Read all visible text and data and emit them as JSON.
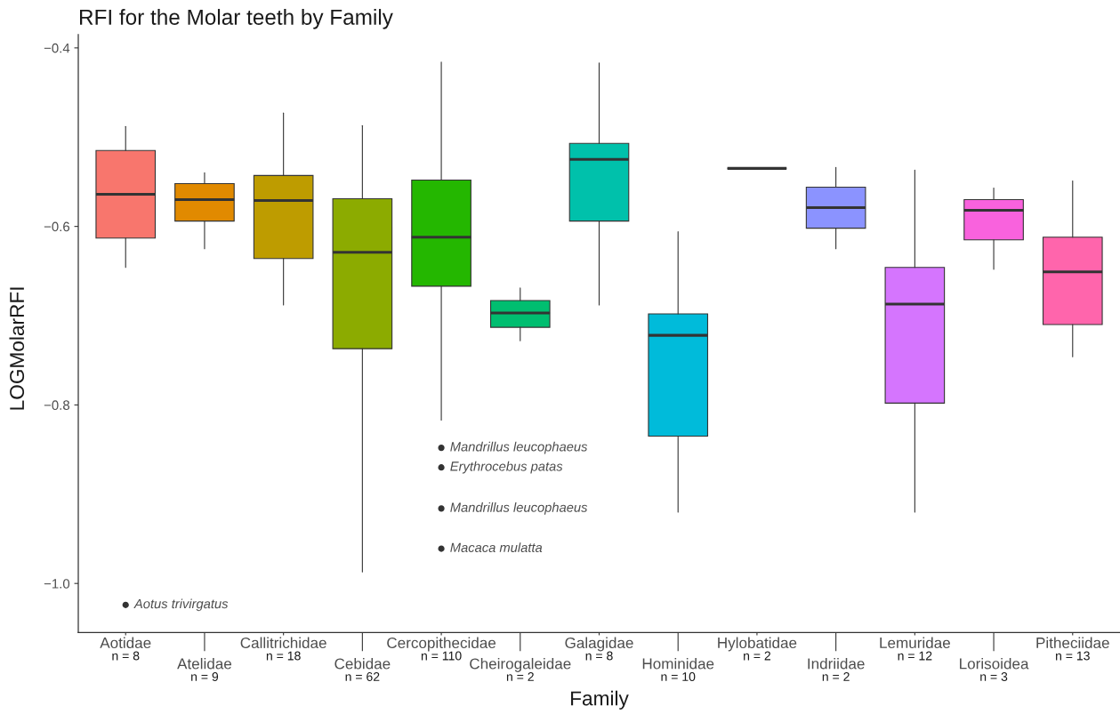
{
  "chart_data": {
    "type": "box",
    "title": "RFI for the Molar teeth by Family",
    "xlabel": "Family",
    "ylabel": "LOGMolarRFI",
    "categories": [
      "Aotidae\nn = 8",
      "Atelidae\nn = 9",
      "Callitrichidae\nn = 18",
      "Cebidae\nn = 62",
      "Cercopithecidae\nn = 110",
      "Cheirogaleidae\nn = 2",
      "Galagidae\nn = 8",
      "Hominidae\nn = 10",
      "Hylobatidae\nn = 2",
      "Indriidae\nn = 2",
      "Lemuridae\nn = 12",
      "Lorisoidea\nn = 3",
      "Pitheciidae\nn = 13"
    ],
    "colors": [
      "#f8766d",
      "#e18a00",
      "#be9c00",
      "#8cab00",
      "#24b700",
      "#00be70",
      "#00c1ab",
      "#00bbda",
      null,
      "#8b93ff",
      "#d575fe",
      "#f962dd",
      "#ff65ac"
    ],
    "boxes": [
      {
        "low": -0.646,
        "q1": -0.613,
        "median": -0.564,
        "q3": -0.515,
        "high": -0.488,
        "outliers": [
          -1.024
        ]
      },
      {
        "low": -0.625,
        "q1": -0.594,
        "median": -0.57,
        "q3": -0.552,
        "high": -0.54
      },
      {
        "low": -0.688,
        "q1": -0.636,
        "median": -0.571,
        "q3": -0.543,
        "high": -0.473
      },
      {
        "low": -0.987,
        "q1": -0.737,
        "median": -0.629,
        "q3": -0.569,
        "high": -0.487
      },
      {
        "low": -0.817,
        "q1": -0.667,
        "median": -0.612,
        "q3": -0.548,
        "high": -0.416,
        "outliers": [
          -0.848,
          -0.87,
          -0.916,
          -0.961
        ]
      },
      {
        "low": -0.728,
        "q1": -0.713,
        "median": -0.697,
        "q3": -0.683,
        "high": -0.669
      },
      {
        "low": -0.688,
        "q1": -0.594,
        "median": -0.525,
        "q3": -0.507,
        "high": -0.417
      },
      {
        "low": -0.92,
        "q1": -0.835,
        "median": -0.722,
        "q3": -0.698,
        "high": -0.606
      },
      {
        "low": -0.535,
        "q1": -0.535,
        "median": -0.535,
        "q3": -0.535,
        "high": -0.535
      },
      {
        "low": -0.625,
        "q1": -0.602,
        "median": -0.579,
        "q3": -0.556,
        "high": -0.534
      },
      {
        "low": -0.92,
        "q1": -0.798,
        "median": -0.687,
        "q3": -0.646,
        "high": -0.537
      },
      {
        "low": -0.648,
        "q1": -0.615,
        "median": -0.582,
        "q3": -0.57,
        "high": -0.557
      },
      {
        "low": -0.746,
        "q1": -0.71,
        "median": -0.651,
        "q3": -0.612,
        "high": -0.549
      }
    ],
    "ylim": [
      -1.055,
      -0.385
    ],
    "yticks": [
      {
        "value": -0.4,
        "label": "−0.4"
      },
      {
        "value": -0.6,
        "label": "−0.6"
      },
      {
        "value": -0.8,
        "label": "−0.8"
      },
      {
        "value": -1.0,
        "label": "−1.0"
      }
    ],
    "marker": "circle",
    "annotations": [
      "Aotus trivirgatus",
      "Mandrillus leucophaeus",
      "Erythrocebus patas",
      "Mandrillus leucophaeus",
      "Macaca mulatta"
    ]
  }
}
